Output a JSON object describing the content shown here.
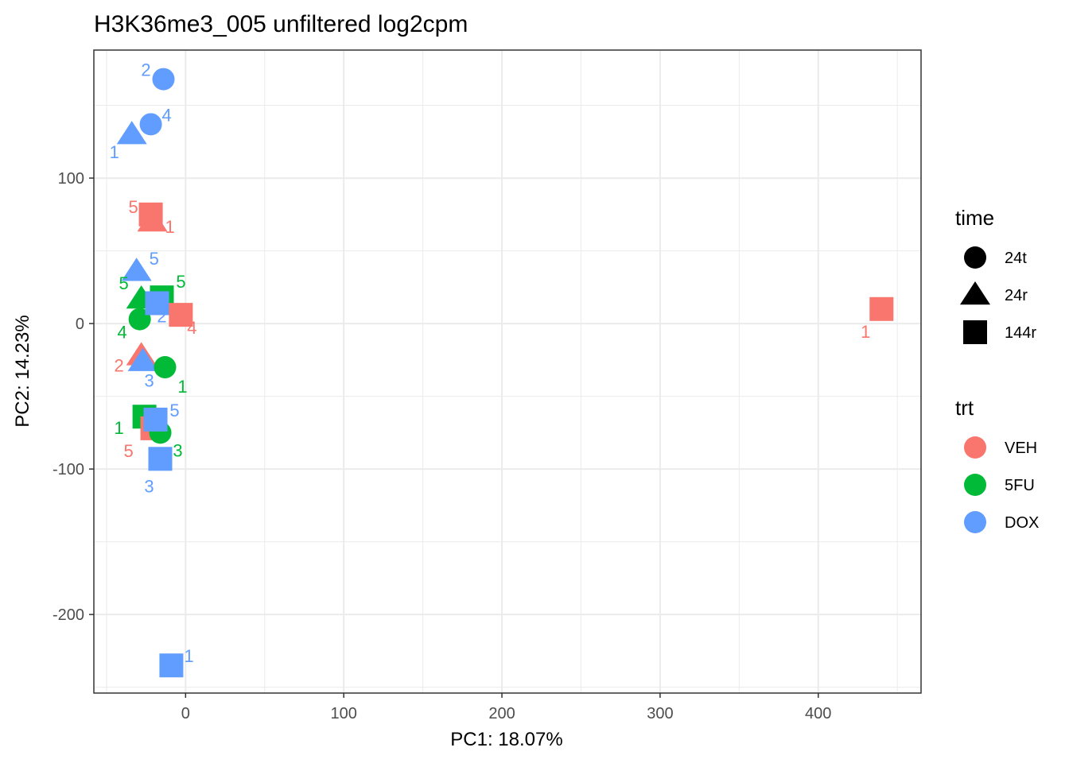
{
  "chart_data": {
    "type": "scatter",
    "title": "H3K36me3_005 unfiltered log2cpm",
    "xlabel": "PC1: 18.07%",
    "ylabel": "PC2: 14.23%",
    "xlim": [
      -58,
      465
    ],
    "ylim": [
      -254,
      188
    ],
    "xticks": [
      0,
      100,
      200,
      300,
      400
    ],
    "yticks": [
      -200,
      -100,
      0,
      100
    ],
    "grid": true,
    "legends": [
      {
        "title": "time",
        "entries": [
          {
            "label": "24t",
            "shape": "circle"
          },
          {
            "label": "24r",
            "shape": "triangle"
          },
          {
            "label": "144r",
            "shape": "square"
          }
        ]
      },
      {
        "title": "trt",
        "entries": [
          {
            "label": "VEH",
            "color": "#F8766D"
          },
          {
            "label": "5FU",
            "color": "#00BA38"
          },
          {
            "label": "DOX",
            "color": "#619CFF"
          }
        ]
      }
    ],
    "legend_position": "right",
    "points": [
      {
        "x": -14,
        "y": 168,
        "trt": "DOX",
        "time": "24t",
        "label": "2"
      },
      {
        "x": -22,
        "y": 137,
        "trt": "DOX",
        "time": "24t",
        "label": "4"
      },
      {
        "x": -34,
        "y": 130,
        "trt": "DOX",
        "time": "24r",
        "label": "1"
      },
      {
        "x": -22,
        "y": 75,
        "trt": "VEH",
        "time": "144r",
        "label": "5"
      },
      {
        "x": -21,
        "y": 70,
        "trt": "VEH",
        "time": "24r",
        "label": "1"
      },
      {
        "x": -31,
        "y": 36,
        "trt": "DOX",
        "time": "24r",
        "label": "5"
      },
      {
        "x": -28,
        "y": 17,
        "trt": "5FU",
        "time": "24r",
        "label": "5"
      },
      {
        "x": -15,
        "y": 18,
        "trt": "5FU",
        "time": "144r",
        "label": "5"
      },
      {
        "x": -29,
        "y": 3,
        "trt": "5FU",
        "time": "24t",
        "label": "4"
      },
      {
        "x": -18,
        "y": 14,
        "trt": "DOX",
        "time": "144r",
        "label": "2"
      },
      {
        "x": -3,
        "y": 6,
        "trt": "VEH",
        "time": "144r",
        "label": "4"
      },
      {
        "x": -28,
        "y": -22,
        "trt": "VEH",
        "time": "24r",
        "label": "2"
      },
      {
        "x": -27,
        "y": -26,
        "trt": "DOX",
        "time": "24r",
        "label": "3"
      },
      {
        "x": -13,
        "y": -30,
        "trt": "5FU",
        "time": "24t",
        "label": "1"
      },
      {
        "x": -26,
        "y": -64,
        "trt": "5FU",
        "time": "144r",
        "label": "1"
      },
      {
        "x": -21,
        "y": -72,
        "trt": "VEH",
        "time": "144r",
        "label": "5"
      },
      {
        "x": -16,
        "y": -75,
        "trt": "5FU",
        "time": "24t",
        "label": "3"
      },
      {
        "x": -19,
        "y": -66,
        "trt": "DOX",
        "time": "144r",
        "label": "5"
      },
      {
        "x": -16,
        "y": -93,
        "trt": "DOX",
        "time": "144r",
        "label": "3"
      },
      {
        "x": 440,
        "y": 10,
        "trt": "VEH",
        "time": "144r",
        "label": "1"
      },
      {
        "x": -9,
        "y": -235,
        "trt": "DOX",
        "time": "144r",
        "label": "1"
      }
    ]
  }
}
